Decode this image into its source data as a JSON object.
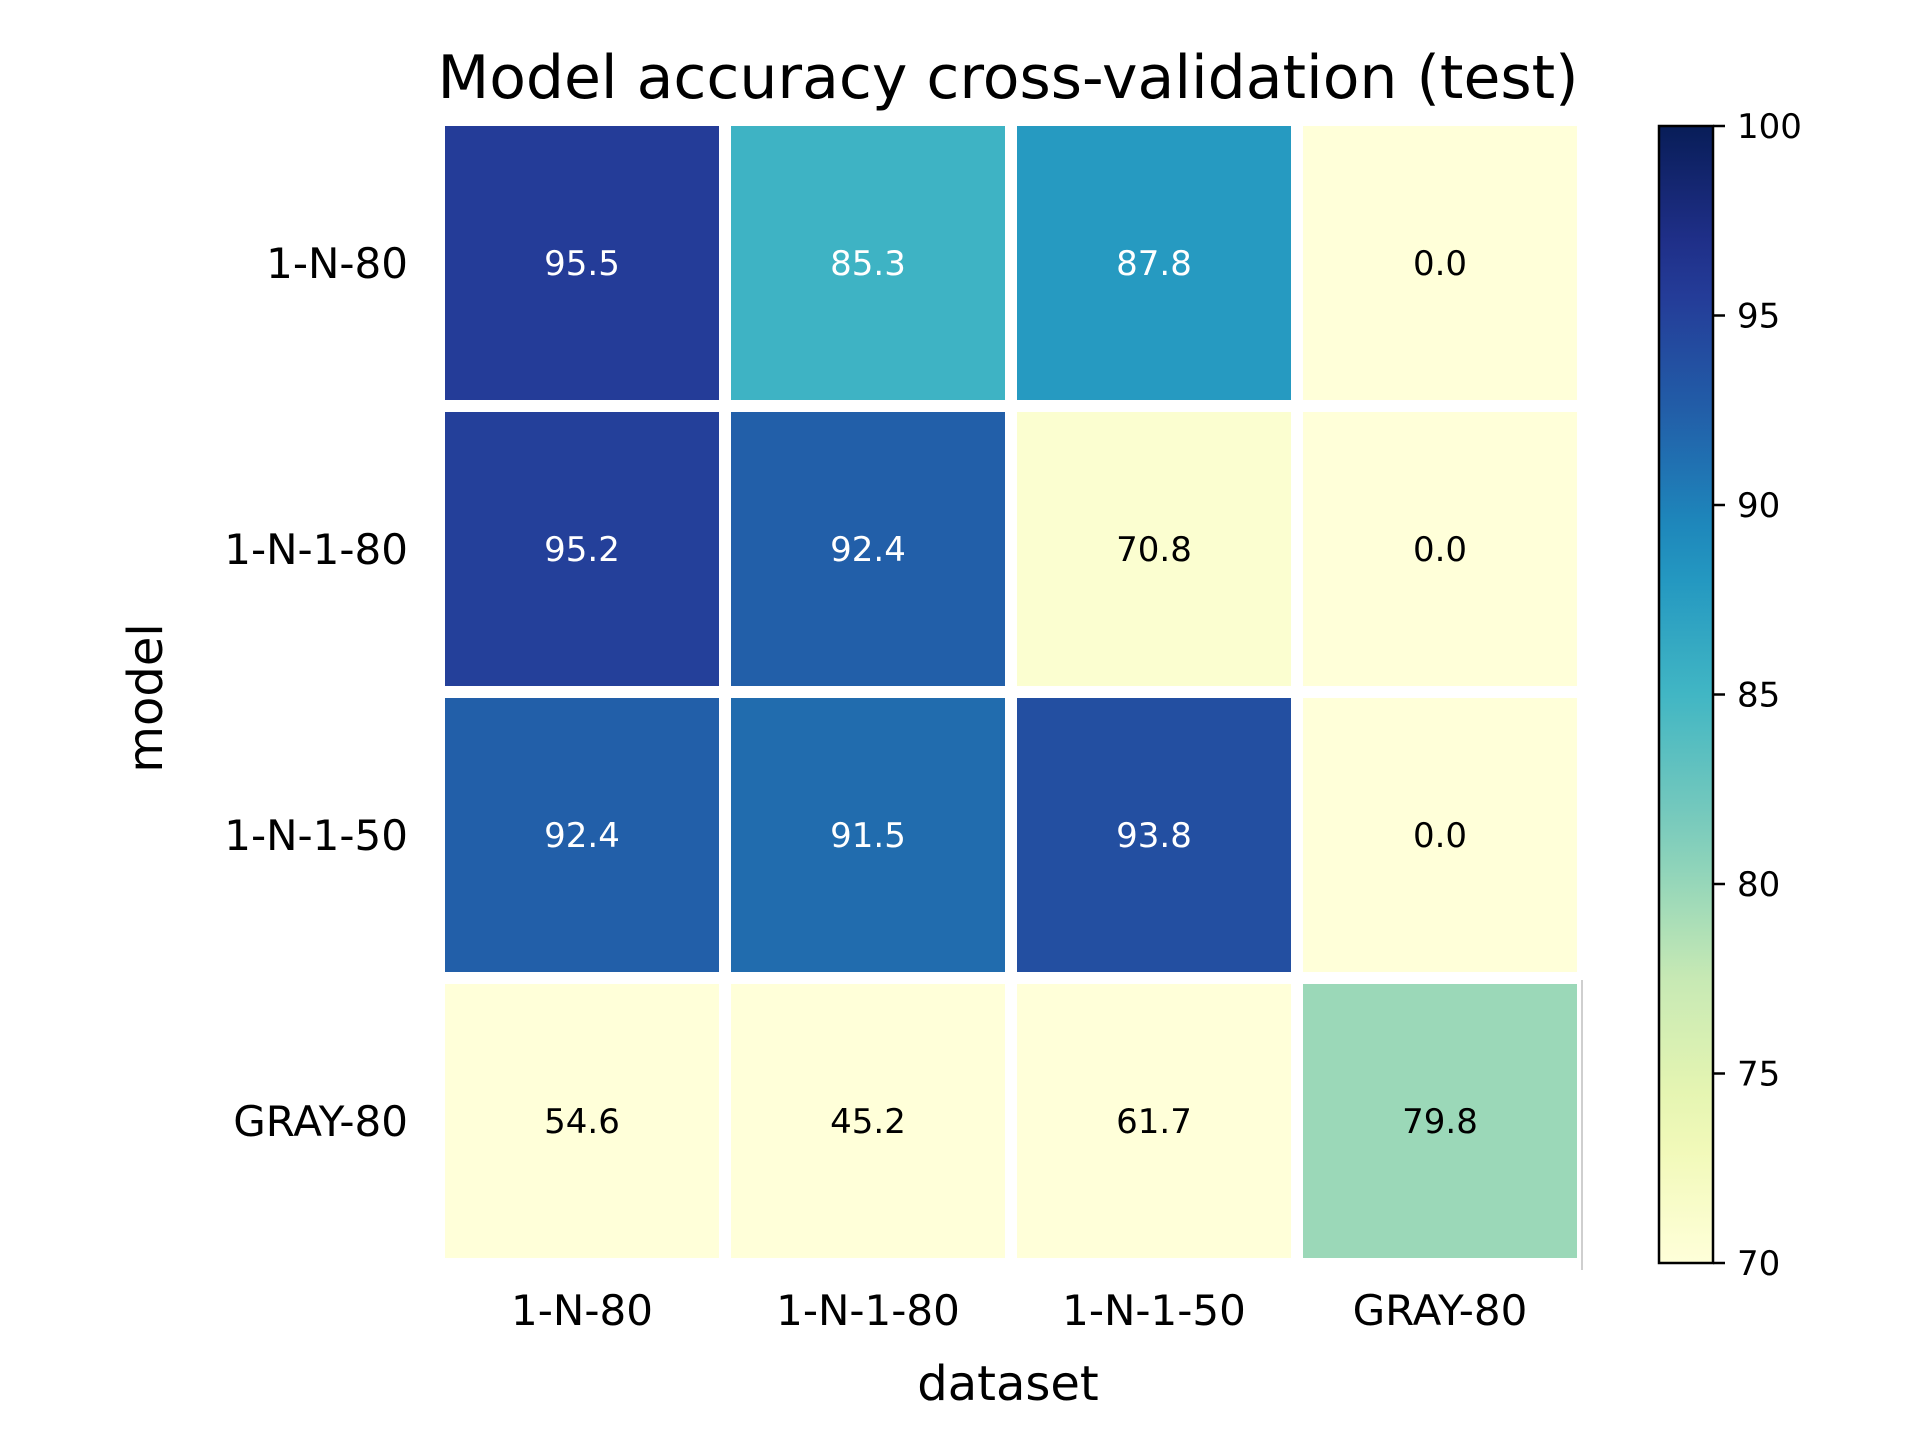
{
  "chart_data": {
    "type": "heatmap",
    "title": "Model accuracy cross-validation (test)",
    "xlabel": "dataset",
    "ylabel": "model",
    "x_categories": [
      "1-N-80",
      "1-N-1-80",
      "1-N-1-50",
      "GRAY-80"
    ],
    "y_categories": [
      "1-N-80",
      "1-N-1-80",
      "1-N-1-50",
      "GRAY-80"
    ],
    "values": [
      [
        95.5,
        85.3,
        87.8,
        0.0
      ],
      [
        95.2,
        92.4,
        70.8,
        0.0
      ],
      [
        92.4,
        91.5,
        93.8,
        0.0
      ],
      [
        54.6,
        45.2,
        61.7,
        79.8
      ]
    ],
    "value_format": "0.0",
    "colormap": "YlGnBu",
    "color_range": [
      70,
      100
    ],
    "colorbar_ticks": [
      70,
      75,
      80,
      85,
      90,
      95,
      100
    ],
    "cell_border_color": "#ffffff",
    "dark_text_color": "#000000",
    "light_text_color": "#ffffff"
  }
}
